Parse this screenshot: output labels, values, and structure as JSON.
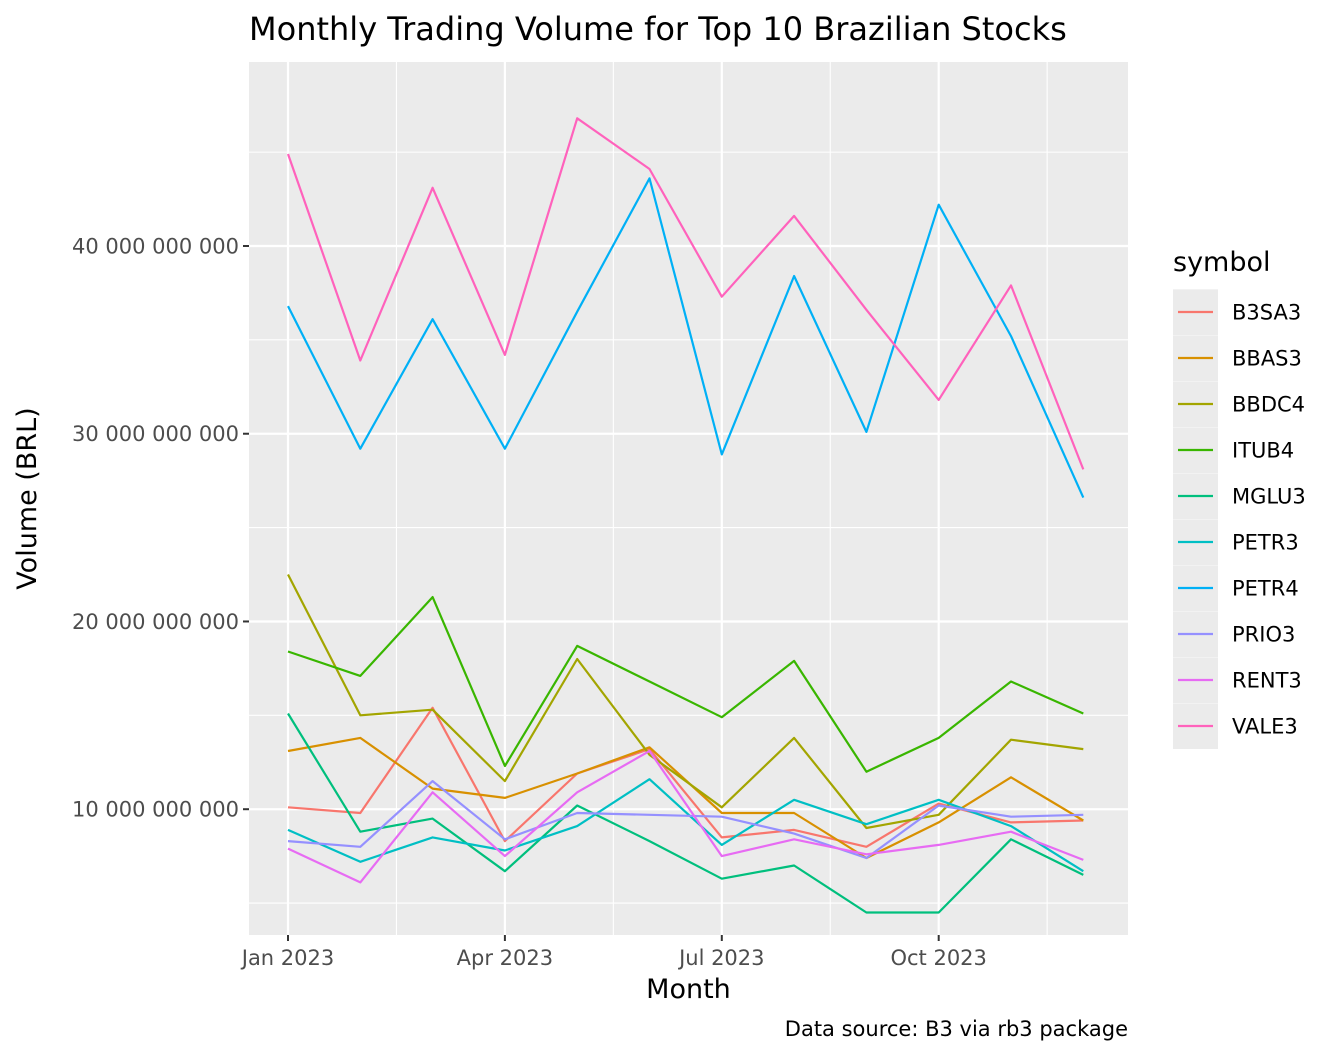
{
  "chart_data": {
    "type": "line",
    "title": "Monthly Trading Volume for Top 10 Brazilian Stocks",
    "xlabel": "Month",
    "ylabel": "Volume (BRL)",
    "caption": "Data source: B3 via rb3 package",
    "legend_title": "symbol",
    "legend_position": "right",
    "x": [
      "2023-01",
      "2023-02",
      "2023-03",
      "2023-04",
      "2023-05",
      "2023-06",
      "2023-07",
      "2023-08",
      "2023-09",
      "2023-10",
      "2023-11",
      "2023-12"
    ],
    "x_ticks": [
      {
        "label": "Jan 2023",
        "month_index": 0
      },
      {
        "label": "Apr 2023",
        "month_index": 3
      },
      {
        "label": "Jul 2023",
        "month_index": 6
      },
      {
        "label": "Oct 2023",
        "month_index": 9
      }
    ],
    "y_ticks": [
      {
        "label": "10 000 000 000",
        "value": 10000000000
      },
      {
        "label": "20 000 000 000",
        "value": 20000000000
      },
      {
        "label": "30 000 000 000",
        "value": 30000000000
      },
      {
        "label": "40 000 000 000",
        "value": 40000000000
      }
    ],
    "ylim": [
      3300000000,
      49800000000
    ],
    "grid": true,
    "panel_background": "#ebebeb",
    "series": [
      {
        "name": "B3SA3",
        "color": "#F8766D",
        "values": [
          10100000000,
          9800000000,
          15400000000,
          8300000000,
          11900000000,
          13200000000,
          8500000000,
          8900000000,
          8000000000,
          10300000000,
          9300000000,
          9400000000
        ]
      },
      {
        "name": "BBAS3",
        "color": "#D89000",
        "values": [
          13100000000,
          13800000000,
          11100000000,
          10600000000,
          11900000000,
          13300000000,
          9800000000,
          9800000000,
          7400000000,
          9300000000,
          11700000000,
          9400000000
        ]
      },
      {
        "name": "BBDC4",
        "color": "#A3A500",
        "values": [
          22500000000,
          15000000000,
          15300000000,
          11500000000,
          18000000000,
          12900000000,
          10100000000,
          13800000000,
          9000000000,
          9700000000,
          13700000000,
          13200000000
        ]
      },
      {
        "name": "ITUB4",
        "color": "#39B600",
        "values": [
          18400000000,
          17100000000,
          21300000000,
          12300000000,
          18700000000,
          16800000000,
          14900000000,
          17900000000,
          12000000000,
          13800000000,
          16800000000,
          15100000000
        ]
      },
      {
        "name": "MGLU3",
        "color": "#00BF7D",
        "values": [
          15100000000,
          8800000000,
          9500000000,
          6700000000,
          10200000000,
          8300000000,
          6300000000,
          7000000000,
          4500000000,
          4500000000,
          8400000000,
          6500000000
        ]
      },
      {
        "name": "PETR3",
        "color": "#00BFC4",
        "values": [
          8900000000,
          7200000000,
          8500000000,
          7800000000,
          9100000000,
          11600000000,
          8100000000,
          10500000000,
          9200000000,
          10500000000,
          9100000000,
          6700000000
        ]
      },
      {
        "name": "PETR4",
        "color": "#00B0F6",
        "values": [
          36800000000,
          29200000000,
          36100000000,
          29200000000,
          36500000000,
          43600000000,
          28900000000,
          38400000000,
          30100000000,
          42200000000,
          35200000000,
          26600000000
        ]
      },
      {
        "name": "PRIO3",
        "color": "#9590FF",
        "values": [
          8300000000,
          8000000000,
          11500000000,
          8400000000,
          9800000000,
          9700000000,
          9600000000,
          8700000000,
          7400000000,
          10200000000,
          9600000000,
          9700000000
        ]
      },
      {
        "name": "RENT3",
        "color": "#E76BF3",
        "values": [
          7900000000,
          6100000000,
          10900000000,
          7500000000,
          10900000000,
          13100000000,
          7500000000,
          8400000000,
          7600000000,
          8100000000,
          8800000000,
          7300000000
        ]
      },
      {
        "name": "VALE3",
        "color": "#FF62BC",
        "values": [
          44900000000,
          33900000000,
          43100000000,
          34200000000,
          46800000000,
          44100000000,
          37300000000,
          41600000000,
          36600000000,
          31800000000,
          37900000000,
          28100000000
        ]
      }
    ]
  }
}
